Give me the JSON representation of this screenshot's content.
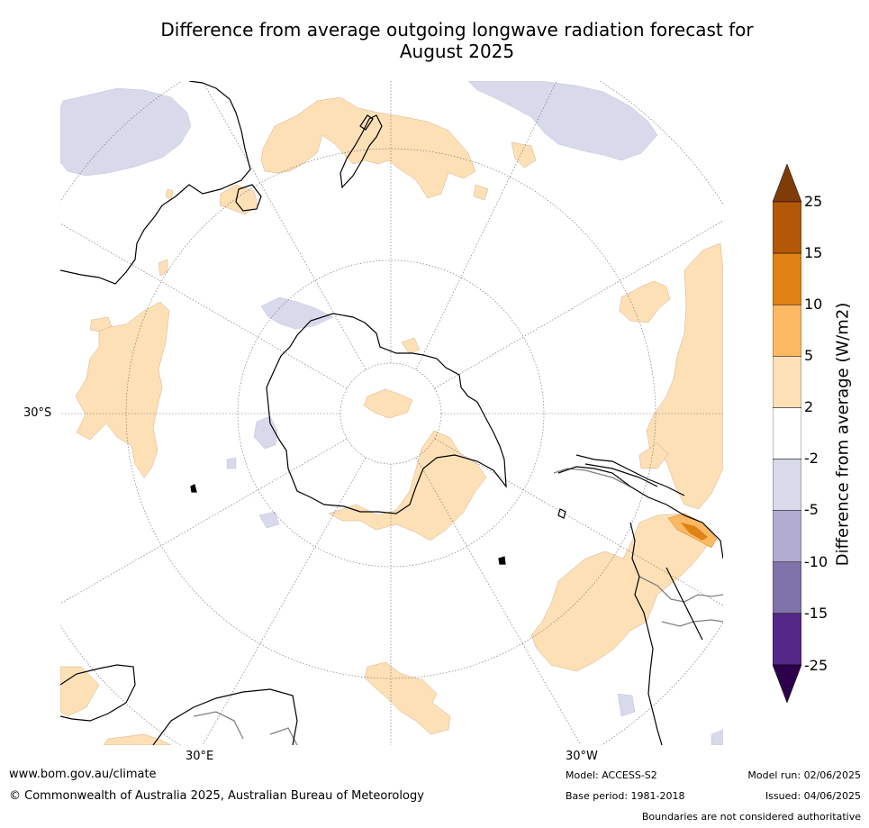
{
  "title_line1": "Difference from average outgoing longwave radiation forecast for",
  "title_line2": "August 2025",
  "map": {
    "projection": "south-polar-stereographic",
    "labels": {
      "lat_30s": "30°S",
      "lon_30e": "30°E",
      "lon_30w": "30°W"
    },
    "land_outline_color": "#000000",
    "boundary_color": "#808080",
    "graticule_color": "#666666"
  },
  "colorbar": {
    "title": "Difference from average (W/m2)",
    "ticks": [
      "25",
      "15",
      "10",
      "5",
      "2",
      "-2",
      "-5",
      "-10",
      "-15",
      "-25"
    ],
    "segments": [
      {
        "range": ">25",
        "color": "#7f3b08"
      },
      {
        "range": "15 to 25",
        "color": "#b35806"
      },
      {
        "range": "10 to 15",
        "color": "#e08214"
      },
      {
        "range": "5 to 10",
        "color": "#fdb863"
      },
      {
        "range": "2 to 5",
        "color": "#fee0b6"
      },
      {
        "range": "-2 to 2",
        "color": "#ffffff"
      },
      {
        "range": "-5 to -2",
        "color": "#d8daeb"
      },
      {
        "range": "-10 to -5",
        "color": "#b2abd2"
      },
      {
        "range": "-15 to -10",
        "color": "#8073ac"
      },
      {
        "range": "-25 to -15",
        "color": "#542788"
      },
      {
        "range": "<-25",
        "color": "#2d004b"
      }
    ]
  },
  "footer": {
    "website": "www.bom.gov.au/climate",
    "copyright": "© Commonwealth of Australia 2025, Australian Bureau of Meteorology",
    "model": "Model: ACCESS-S2",
    "base_period": "Base period: 1981-2018",
    "model_run": "Model run: 02/06/2025",
    "issued": "Issued: 04/06/2025",
    "disclaimer": "Boundaries are not considered authoritative"
  }
}
